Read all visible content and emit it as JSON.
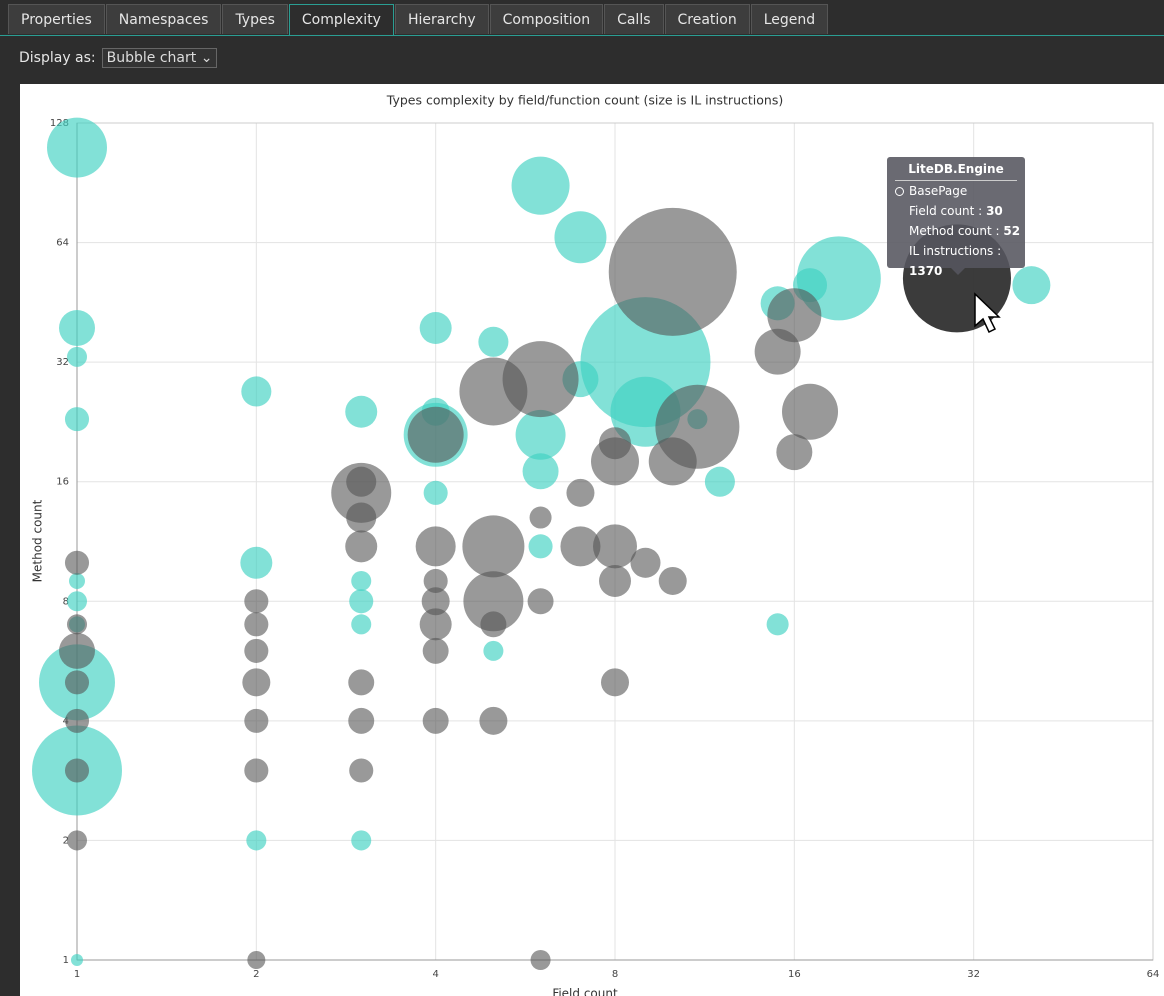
{
  "tabs": [
    "Properties",
    "Namespaces",
    "Types",
    "Complexity",
    "Hierarchy",
    "Composition",
    "Calls",
    "Creation",
    "Legend"
  ],
  "display_label": "Display as:",
  "display_value": "Bubble chart",
  "chart_data": {
    "type": "bubble",
    "title": "Types complexity by field/function count (size is IL instructions)",
    "xlabel": "Field count",
    "ylabel": "Method count",
    "log_base": 2,
    "xlim": [
      1,
      64
    ],
    "ylim": [
      1,
      128
    ],
    "xticks": [
      1,
      2,
      4,
      8,
      16,
      32,
      64
    ],
    "yticks": [
      1,
      2,
      4,
      8,
      16,
      32,
      64,
      128
    ],
    "grid": true,
    "series": [
      {
        "color": "#3fd1c1",
        "opacity": 0.65,
        "x": [
          1,
          1,
          1,
          1,
          1,
          1,
          1,
          1,
          1,
          1,
          2,
          2,
          2,
          3,
          3,
          3,
          3,
          3,
          4,
          4,
          4,
          4,
          5,
          5,
          6,
          6,
          6,
          6,
          7,
          7,
          9,
          9,
          11,
          12,
          15,
          15,
          17,
          19,
          40
        ],
        "values": [
          111,
          39,
          33,
          23,
          5,
          3,
          9,
          8,
          7,
          1,
          27,
          10,
          2,
          24,
          9,
          8,
          7,
          2,
          39,
          24,
          21,
          15,
          36,
          6,
          89,
          21,
          17,
          11,
          66,
          29,
          32,
          24,
          23,
          16,
          45,
          7,
          50,
          52,
          50
        ],
        "sizes": [
          422,
          152,
          47,
          68,
          677,
          950,
          30,
          47,
          30,
          17,
          106,
          120,
          47,
          120,
          47,
          68,
          47,
          47,
          120,
          92,
          480,
          68,
          106,
          47,
          395,
          293,
          152,
          68,
          317,
          152,
          1982,
          575,
          47,
          106,
          136,
          57,
          136,
          828,
          169
        ]
      },
      {
        "color": "#555555",
        "opacity": 0.6,
        "x": [
          1,
          1,
          1,
          1,
          1,
          1,
          1,
          2,
          2,
          2,
          2,
          2,
          2,
          2,
          3,
          3,
          3,
          3,
          3,
          3,
          3,
          4,
          4,
          4,
          4,
          4,
          4,
          4,
          5,
          5,
          5,
          5,
          5,
          6,
          6,
          6,
          6,
          7,
          7,
          8,
          8,
          8,
          8,
          8,
          9,
          10,
          10,
          10,
          11,
          15,
          16,
          16,
          17
        ],
        "values": [
          10,
          6,
          5,
          4,
          3,
          2,
          7,
          8,
          7,
          6,
          5,
          4,
          3,
          1,
          15,
          16,
          13,
          11,
          5,
          4,
          3,
          21,
          11,
          9,
          8,
          7,
          6,
          4,
          27,
          11,
          8,
          7,
          4,
          29,
          13,
          8,
          1,
          15,
          11,
          20,
          18,
          11,
          9,
          5,
          10,
          54,
          18,
          9,
          22,
          34,
          42,
          19,
          24
        ],
        "sizes": [
          68,
          152,
          68,
          68,
          68,
          47,
          47,
          68,
          68,
          68,
          92,
          68,
          68,
          38,
          422,
          106,
          106,
          120,
          79,
          79,
          68,
          368,
          188,
          68,
          92,
          120,
          79,
          79,
          542,
          451,
          422,
          79,
          92,
          677,
          57,
          79,
          47,
          92,
          188,
          120,
          270,
          227,
          120,
          92,
          106,
          1922,
          270,
          92,
          828,
          248,
          342,
          152,
          368
        ]
      },
      {
        "color": "#2a2a2a",
        "opacity": 0.92,
        "x": [
          30
        ],
        "values": [
          52
        ],
        "sizes": [
          1370
        ]
      }
    ]
  },
  "tooltip": {
    "title": "LiteDB.Engine",
    "item": "BasePage",
    "lines": [
      {
        "label": "Field count :",
        "value": 30
      },
      {
        "label": "Method count :",
        "value": 52
      },
      {
        "label": "IL instructions :",
        "value": 1370
      }
    ]
  }
}
